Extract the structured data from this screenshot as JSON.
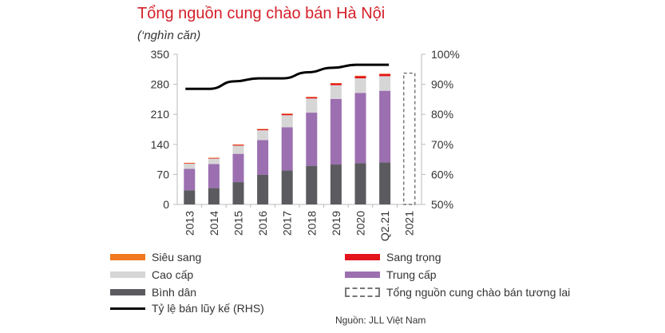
{
  "title": "Tổng nguồn cung chào bán Hà Nội",
  "subtitle": "(‘nghìn căn)",
  "source": "Nguồn: JLL Việt Nam",
  "colors": {
    "title": "#d4202a",
    "sieu_sang": "#f07820",
    "sang_trong": "#e3141c",
    "cao_cap": "#d6d6d6",
    "trung_cap": "#9b6fb0",
    "binh_dan": "#5b5b5f",
    "line": "#000000",
    "future": "#777777"
  },
  "legend": [
    {
      "key": "sieu_sang",
      "label": "Siêu sang",
      "style": "bar"
    },
    {
      "key": "sang_trong",
      "label": "Sang trọng",
      "style": "bar"
    },
    {
      "key": "cao_cap",
      "label": "Cao cấp",
      "style": "bar"
    },
    {
      "key": "trung_cap",
      "label": "Trung cấp",
      "style": "bar"
    },
    {
      "key": "binh_dan",
      "label": "Bình dân",
      "style": "bar"
    },
    {
      "key": "future",
      "label": "Tổng nguồn cung chào bán tương lai",
      "style": "dashed"
    },
    {
      "key": "line",
      "label": "Tỷ lệ bán lũy kế (RHS)",
      "style": "line"
    }
  ],
  "chart_data": {
    "type": "bar",
    "stacked": true,
    "categories": [
      "2013",
      "2014",
      "2015",
      "2016",
      "2017",
      "2018",
      "2019",
      "2020",
      "Q2.21",
      "2021"
    ],
    "series": [
      {
        "name": "Bình dân",
        "key": "binh_dan",
        "values": [
          33,
          38,
          52,
          69,
          79,
          90,
          93,
          96,
          98,
          null
        ]
      },
      {
        "name": "Trung cấp",
        "key": "trung_cap",
        "values": [
          50,
          56,
          66,
          81,
          101,
          124,
          153,
          164,
          167,
          null
        ]
      },
      {
        "name": "Cao cấp",
        "key": "cao_cap",
        "values": [
          12,
          13,
          19,
          23,
          28,
          33,
          32,
          34,
          34,
          null
        ]
      },
      {
        "name": "Sang trọng",
        "key": "sang_trong",
        "values": [
          1,
          1,
          2,
          2,
          3,
          3,
          4,
          5,
          5,
          null
        ]
      },
      {
        "name": "Siêu sang",
        "key": "sieu_sang",
        "values": [
          1,
          1,
          1,
          1,
          1,
          1,
          1,
          1,
          1,
          null
        ]
      }
    ],
    "future_supply": {
      "category": "2021",
      "name": "Tổng nguồn cung chào bán tương lai",
      "value": 306
    },
    "line": {
      "name": "Tỷ lệ bán lũy kế (RHS)",
      "axis": "right",
      "values": [
        88.5,
        88.5,
        91,
        92,
        92,
        94,
        95.5,
        96.5,
        96.5,
        null
      ]
    },
    "y_left": {
      "min": 0,
      "max": 350,
      "ticks": [
        0,
        70,
        140,
        210,
        280,
        350
      ]
    },
    "y_right": {
      "min": 50,
      "max": 100,
      "ticks": [
        50,
        60,
        70,
        80,
        90,
        100
      ],
      "format": "percent"
    },
    "grid": false,
    "legend_position": "bottom"
  }
}
